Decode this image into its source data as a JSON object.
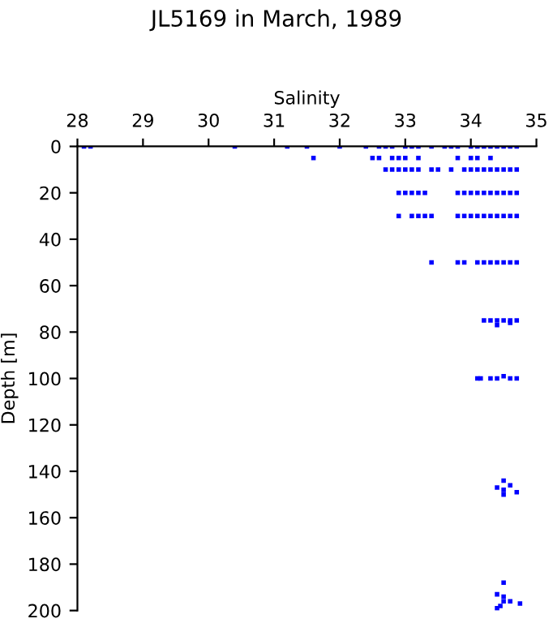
{
  "chart_data": {
    "type": "scatter",
    "title": "JL5169 in March, 1989",
    "xlabel": "Salinity",
    "ylabel": "Depth [m]",
    "xlim": [
      28,
      35
    ],
    "xticks": [
      28,
      29,
      30,
      31,
      32,
      33,
      34,
      35
    ],
    "ylim": [
      200,
      0
    ],
    "yticks": [
      0,
      20,
      40,
      60,
      80,
      100,
      120,
      140,
      160,
      180,
      200
    ],
    "marker": "square",
    "grid": false,
    "legend": false,
    "series": [
      {
        "color": "#0000ff",
        "x": [
          28.1,
          28.2,
          30.4,
          31.2,
          31.5,
          32.0,
          32.4,
          32.6,
          32.7,
          32.8,
          33.0,
          33.1,
          33.2,
          33.4,
          33.6,
          33.7,
          33.8,
          34.0,
          34.1,
          34.2,
          34.3,
          34.4,
          34.5,
          34.6,
          34.7,
          31.6,
          32.5,
          32.6,
          32.8,
          32.9,
          33.0,
          33.2,
          33.8,
          34.0,
          34.1,
          34.3,
          32.7,
          32.8,
          32.9,
          33.0,
          33.1,
          33.2,
          33.4,
          33.5,
          33.7,
          33.9,
          34.0,
          34.1,
          34.2,
          34.3,
          34.4,
          34.5,
          34.6,
          34.7,
          32.9,
          33.0,
          33.1,
          33.2,
          33.3,
          33.8,
          33.9,
          34.0,
          34.1,
          34.2,
          34.3,
          34.4,
          34.5,
          34.6,
          34.7,
          32.9,
          33.1,
          33.2,
          33.3,
          33.4,
          33.8,
          33.9,
          34.0,
          34.1,
          34.2,
          34.3,
          34.4,
          34.5,
          34.6,
          34.7,
          33.4,
          33.8,
          33.9,
          34.1,
          34.2,
          34.3,
          34.4,
          34.5,
          34.6,
          34.7,
          34.2,
          34.3,
          34.4,
          34.5,
          34.6,
          34.7,
          34.4,
          34.6,
          34.1,
          34.15,
          34.3,
          34.4,
          34.5,
          34.6,
          34.7,
          34.5,
          34.4,
          34.5,
          34.5,
          34.7,
          34.6,
          34.5,
          34.4,
          34.5,
          34.5,
          34.45,
          34.4,
          34.6,
          34.75
        ],
        "values": [
          0,
          0,
          0,
          0,
          0,
          0,
          0,
          0,
          0,
          0,
          0,
          0,
          0,
          0,
          0,
          0,
          0,
          0,
          0,
          0,
          0,
          0,
          0,
          0,
          0,
          5,
          5,
          5,
          5,
          5,
          5,
          5,
          5,
          5,
          5,
          5,
          10,
          10,
          10,
          10,
          10,
          10,
          10,
          10,
          10,
          10,
          10,
          10,
          10,
          10,
          10,
          10,
          10,
          10,
          20,
          20,
          20,
          20,
          20,
          20,
          20,
          20,
          20,
          20,
          20,
          20,
          20,
          20,
          20,
          30,
          30,
          30,
          30,
          30,
          30,
          30,
          30,
          30,
          30,
          30,
          30,
          30,
          30,
          30,
          50,
          50,
          50,
          50,
          50,
          50,
          50,
          50,
          50,
          50,
          75,
          75,
          75,
          75,
          75,
          75,
          77,
          76,
          100,
          100,
          100,
          100,
          99,
          100,
          100,
          144,
          147,
          148,
          150,
          149,
          146,
          188,
          193,
          194,
          196,
          198,
          199,
          196,
          197
        ]
      }
    ]
  }
}
